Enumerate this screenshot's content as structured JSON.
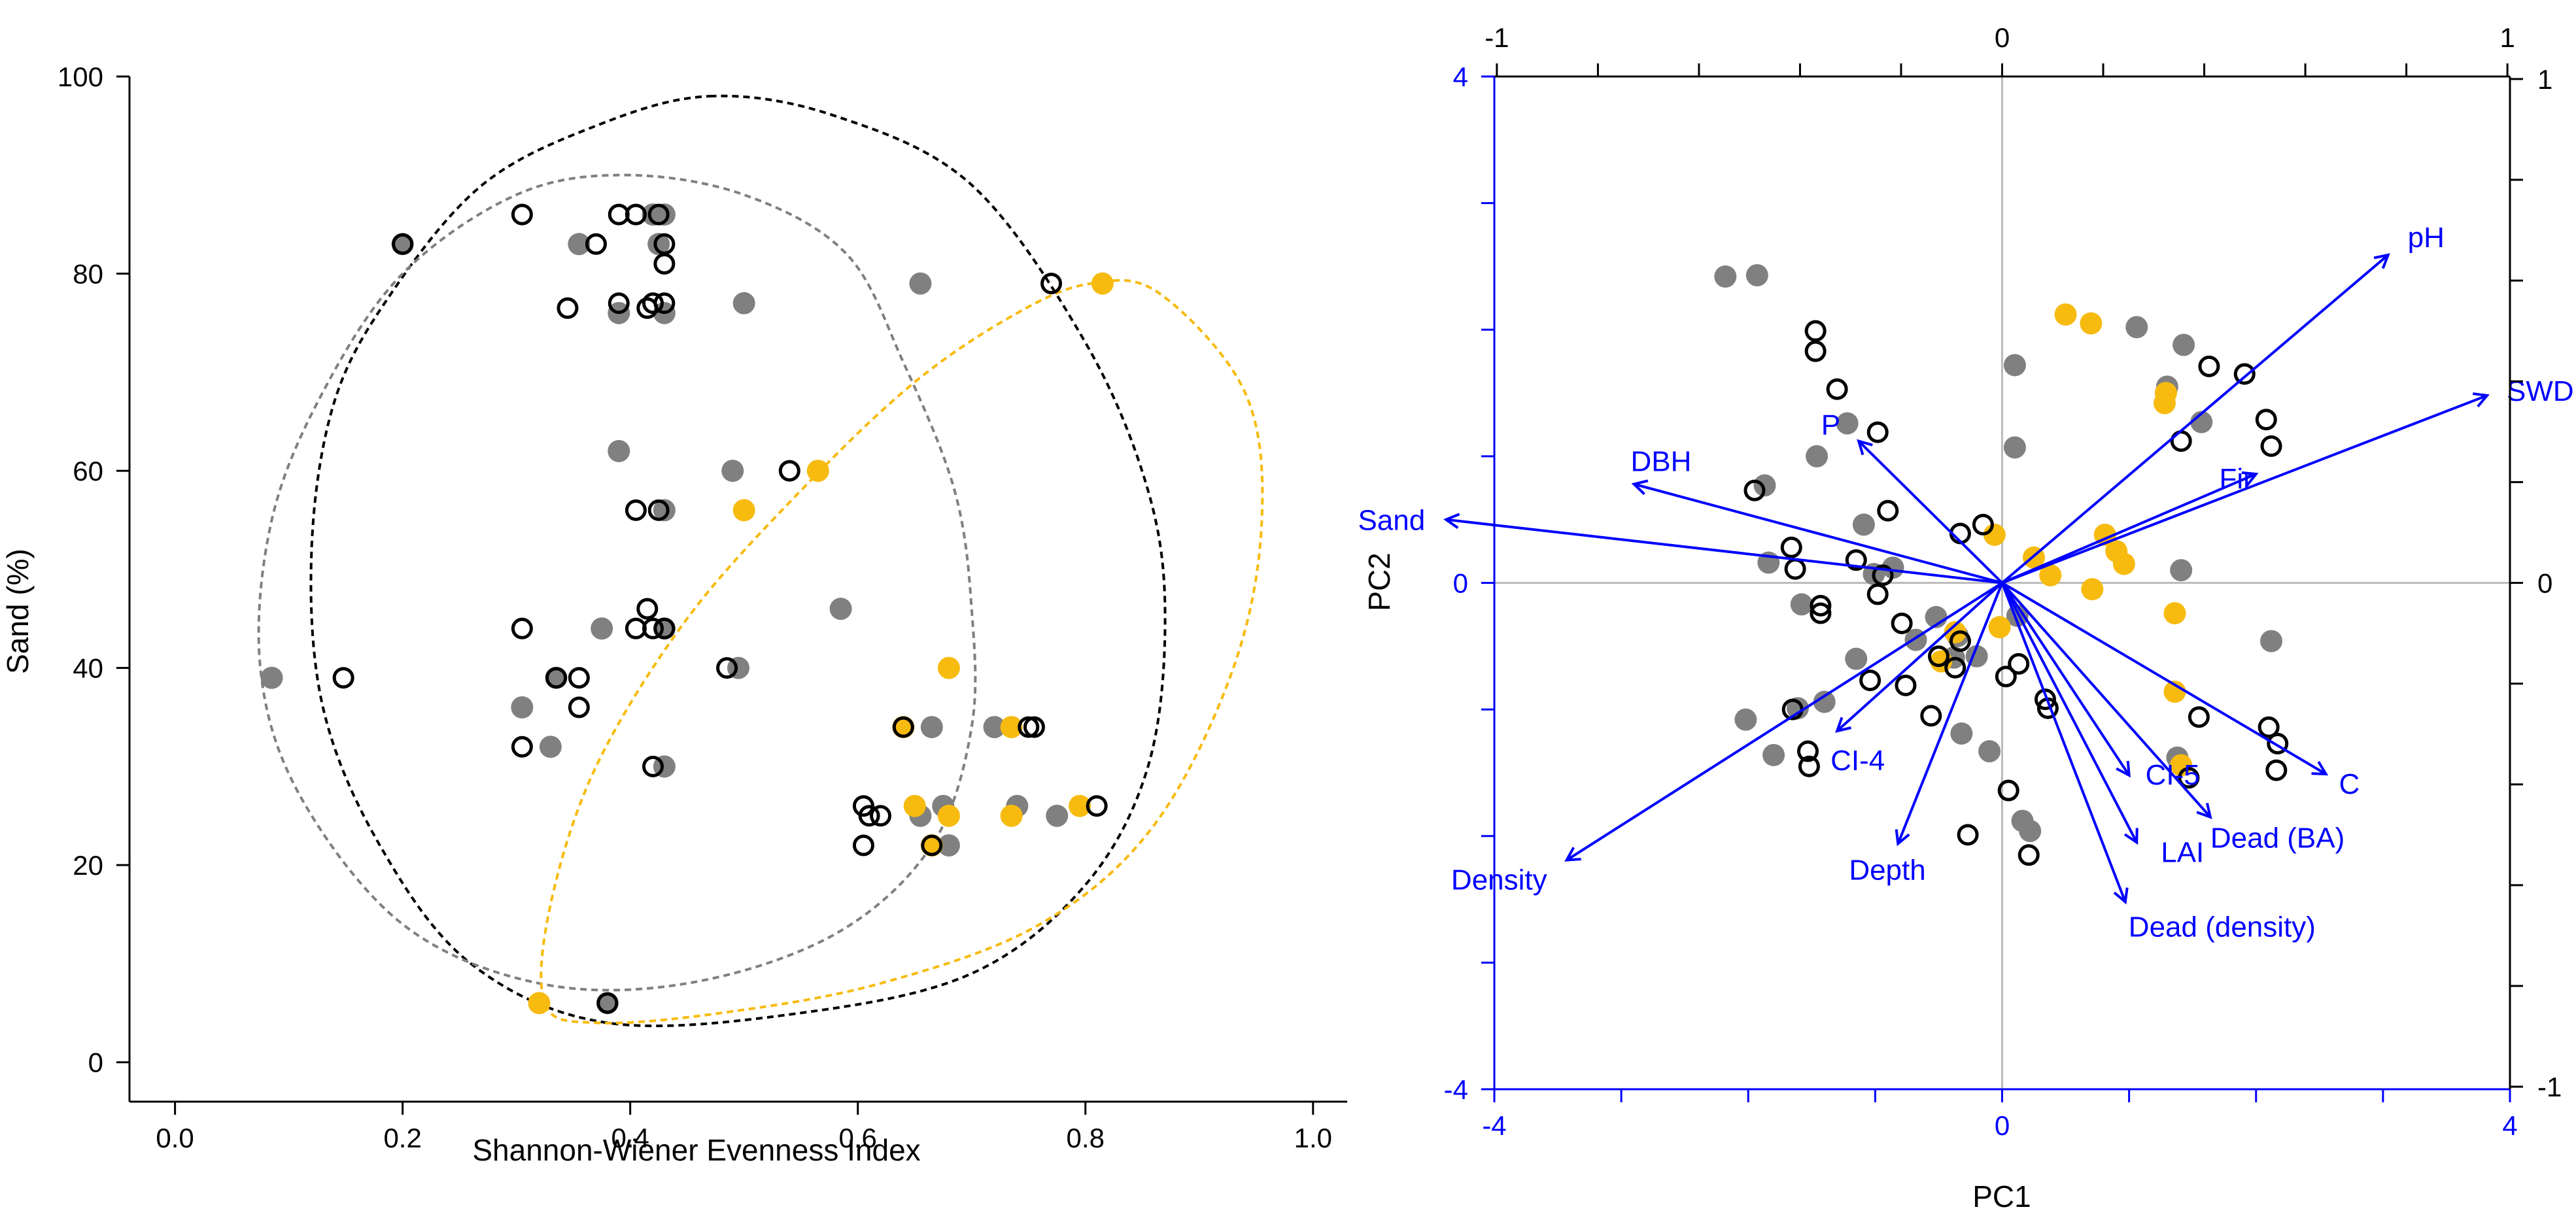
{
  "colors": {
    "black": "#000000",
    "grey": "#808080",
    "orange": "#F7BB10",
    "blue": "#0000FF",
    "zero_line": "#BBBBBB"
  },
  "chart_data": [
    {
      "type": "scatter",
      "title": "",
      "xlabel": "Shannon-Wiener Evenness Index",
      "ylabel": "Sand (%)",
      "xlim": [
        -0.04,
        1.03
      ],
      "ylim": [
        -4,
        100
      ],
      "xticks": [
        "0.0",
        "0.2",
        "0.4",
        "0.6",
        "0.8",
        "1.0"
      ],
      "yticks": [
        "0",
        "20",
        "40",
        "60",
        "80",
        "100"
      ],
      "legend": "none",
      "series": [
        {
          "marker": "open-black",
          "points": [
            [
              0.2,
              83
            ],
            [
              0.305,
              86
            ],
            [
              0.39,
              86
            ],
            [
              0.405,
              86
            ],
            [
              0.425,
              86
            ],
            [
              0.415,
              76.5
            ],
            [
              0.42,
              77
            ],
            [
              0.43,
              83
            ],
            [
              0.43,
              81
            ],
            [
              0.43,
              77
            ],
            [
              0.39,
              77
            ],
            [
              0.345,
              76.5
            ],
            [
              0.37,
              83
            ],
            [
              0.405,
              56
            ],
            [
              0.425,
              56
            ],
            [
              0.405,
              44
            ],
            [
              0.42,
              44
            ],
            [
              0.43,
              44
            ],
            [
              0.415,
              46
            ],
            [
              0.305,
              44
            ],
            [
              0.335,
              39
            ],
            [
              0.355,
              39
            ],
            [
              0.355,
              36
            ],
            [
              0.305,
              32
            ],
            [
              0.148,
              39
            ],
            [
              0.42,
              30
            ],
            [
              0.485,
              40
            ],
            [
              0.54,
              60
            ],
            [
              0.38,
              6
            ],
            [
              0.77,
              79
            ],
            [
              0.81,
              26
            ],
            [
              0.605,
              26
            ],
            [
              0.61,
              25
            ],
            [
              0.62,
              25
            ],
            [
              0.605,
              22
            ],
            [
              0.665,
              22
            ],
            [
              0.64,
              34
            ],
            [
              0.75,
              34
            ],
            [
              0.755,
              34
            ]
          ]
        },
        {
          "marker": "filled-grey",
          "points": [
            [
              0.2,
              83
            ],
            [
              0.085,
              39
            ],
            [
              0.305,
              36
            ],
            [
              0.33,
              32
            ],
            [
              0.335,
              39
            ],
            [
              0.355,
              83
            ],
            [
              0.375,
              44
            ],
            [
              0.39,
              62
            ],
            [
              0.39,
              76
            ],
            [
              0.42,
              86
            ],
            [
              0.425,
              83
            ],
            [
              0.43,
              86
            ],
            [
              0.43,
              76
            ],
            [
              0.43,
              56
            ],
            [
              0.43,
              44
            ],
            [
              0.43,
              30
            ],
            [
              0.5,
              77
            ],
            [
              0.49,
              60
            ],
            [
              0.495,
              40
            ],
            [
              0.585,
              46
            ],
            [
              0.655,
              79
            ],
            [
              0.655,
              25
            ],
            [
              0.665,
              34
            ],
            [
              0.675,
              26
            ],
            [
              0.68,
              22
            ],
            [
              0.72,
              34
            ],
            [
              0.74,
              26
            ],
            [
              0.775,
              25
            ],
            [
              0.38,
              6
            ]
          ]
        },
        {
          "marker": "filled-orange",
          "points": [
            [
              0.32,
              6
            ],
            [
              0.5,
              56
            ],
            [
              0.565,
              60
            ],
            [
              0.68,
              40
            ],
            [
              0.64,
              34
            ],
            [
              0.65,
              26
            ],
            [
              0.68,
              25
            ],
            [
              0.665,
              22
            ],
            [
              0.735,
              34
            ],
            [
              0.735,
              25
            ],
            [
              0.795,
              26
            ],
            [
              0.815,
              79
            ]
          ]
        }
      ],
      "ellipses": [
        {
          "color": "black",
          "path": [
            [
              0.47,
              98
            ],
            [
              0.58,
              96
            ],
            [
              0.7,
              89
            ],
            [
              0.8,
              73
            ],
            [
              0.855,
              58
            ],
            [
              0.87,
              45
            ],
            [
              0.855,
              30
            ],
            [
              0.8,
              18
            ],
            [
              0.7,
              9
            ],
            [
              0.55,
              5
            ],
            [
              0.38,
              4
            ],
            [
              0.26,
              10
            ],
            [
              0.18,
              22
            ],
            [
              0.13,
              36
            ],
            [
              0.12,
              52
            ],
            [
              0.14,
              67
            ],
            [
              0.19,
              78
            ],
            [
              0.27,
              89
            ],
            [
              0.37,
              95
            ]
          ]
        },
        {
          "color": "grey",
          "path": [
            [
              0.395,
              90
            ],
            [
              0.5,
              88
            ],
            [
              0.59,
              82
            ],
            [
              0.64,
              71
            ],
            [
              0.685,
              58
            ],
            [
              0.7,
              46
            ],
            [
              0.7,
              34
            ],
            [
              0.665,
              22
            ],
            [
              0.58,
              13
            ],
            [
              0.45,
              8
            ],
            [
              0.32,
              8
            ],
            [
              0.2,
              14
            ],
            [
              0.11,
              27
            ],
            [
              0.075,
              40
            ],
            [
              0.085,
              55
            ],
            [
              0.13,
              68
            ],
            [
              0.2,
              80
            ],
            [
              0.3,
              88
            ]
          ]
        },
        {
          "color": "orange",
          "path": [
            [
              0.805,
              79
            ],
            [
              0.865,
              78
            ],
            [
              0.94,
              68
            ],
            [
              0.955,
              55
            ],
            [
              0.93,
              40
            ],
            [
              0.86,
              24
            ],
            [
              0.76,
              14
            ],
            [
              0.62,
              8
            ],
            [
              0.48,
              5
            ],
            [
              0.37,
              4
            ],
            [
              0.325,
              6
            ],
            [
              0.33,
              16
            ],
            [
              0.37,
              30
            ],
            [
              0.45,
              45
            ],
            [
              0.55,
              58
            ],
            [
              0.65,
              69
            ],
            [
              0.74,
              76
            ]
          ]
        }
      ]
    },
    {
      "type": "scatter",
      "subtype": "biplot",
      "title": "",
      "xlabel": "PC1",
      "ylabel": "PC2",
      "xlim": [
        -4,
        4
      ],
      "ylim": [
        -4,
        4
      ],
      "bottom_ticks": [
        "-4",
        "0",
        "4"
      ],
      "left_ticks": [
        "4",
        "0",
        "-4"
      ],
      "top_ticks": [
        "-1",
        "0",
        "1"
      ],
      "right_ticks": [
        "1",
        "0",
        "-1"
      ],
      "legend": "none",
      "series": [
        {
          "marker": "filled-grey",
          "points": [
            [
              -2.18,
              2.42
            ],
            [
              -1.93,
              2.43
            ],
            [
              0.1,
              1.72
            ],
            [
              1.06,
              2.02
            ],
            [
              1.43,
              1.88
            ],
            [
              1.3,
              1.55
            ],
            [
              1.57,
              1.27
            ],
            [
              0.1,
              1.07
            ],
            [
              -1.22,
              1.26
            ],
            [
              -1.46,
              1.0
            ],
            [
              -1.87,
              0.77
            ],
            [
              -1.09,
              0.46
            ],
            [
              -1.84,
              0.16
            ],
            [
              -0.86,
              0.12
            ],
            [
              -1.01,
              0.07
            ],
            [
              -1.58,
              -0.17
            ],
            [
              -0.52,
              -0.27
            ],
            [
              -0.68,
              -0.45
            ],
            [
              -0.35,
              -0.42
            ],
            [
              -0.38,
              -0.59
            ],
            [
              0.12,
              -0.26
            ],
            [
              0.16,
              -1.88
            ],
            [
              -0.32,
              -1.19
            ],
            [
              -0.1,
              -1.33
            ],
            [
              0.22,
              -1.96
            ],
            [
              -1.4,
              -0.94
            ],
            [
              -1.61,
              -0.99
            ],
            [
              -2.02,
              -1.08
            ],
            [
              -1.8,
              -1.36
            ],
            [
              1.41,
              0.1
            ],
            [
              2.12,
              -0.46
            ],
            [
              1.38,
              -1.38
            ],
            [
              -1.15,
              -0.6
            ],
            [
              -0.2,
              -0.58
            ]
          ]
        },
        {
          "marker": "open-black",
          "points": [
            [
              -1.47,
              1.99
            ],
            [
              -1.47,
              1.83
            ],
            [
              -1.3,
              1.53
            ],
            [
              -0.98,
              1.19
            ],
            [
              1.41,
              1.12
            ],
            [
              1.63,
              1.71
            ],
            [
              1.91,
              1.65
            ],
            [
              2.08,
              1.29
            ],
            [
              2.12,
              1.08
            ],
            [
              -1.95,
              0.73
            ],
            [
              -0.9,
              0.57
            ],
            [
              -0.15,
              0.46
            ],
            [
              -0.33,
              0.39
            ],
            [
              -1.63,
              0.11
            ],
            [
              -1.66,
              0.28
            ],
            [
              -0.98,
              -0.09
            ],
            [
              -1.15,
              0.18
            ],
            [
              -0.94,
              0.06
            ],
            [
              -1.43,
              -0.18
            ],
            [
              -1.43,
              -0.24
            ],
            [
              -0.79,
              -0.32
            ],
            [
              -0.33,
              -0.46
            ],
            [
              -0.5,
              -0.58
            ],
            [
              -0.37,
              -0.67
            ],
            [
              -1.04,
              -0.77
            ],
            [
              -0.76,
              -0.81
            ],
            [
              -1.65,
              -1.0
            ],
            [
              -0.56,
              -1.05
            ],
            [
              1.55,
              -1.06
            ],
            [
              0.13,
              -0.64
            ],
            [
              0.03,
              -0.74
            ],
            [
              0.34,
              -0.92
            ],
            [
              2.1,
              -1.14
            ],
            [
              2.17,
              -1.27
            ],
            [
              2.16,
              -1.48
            ],
            [
              1.47,
              -1.54
            ],
            [
              -1.53,
              -1.33
            ],
            [
              -1.52,
              -1.45
            ],
            [
              0.05,
              -1.64
            ],
            [
              -0.27,
              -1.99
            ],
            [
              0.21,
              -2.15
            ],
            [
              0.36,
              -0.99
            ]
          ]
        },
        {
          "marker": "filled-orange",
          "points": [
            [
              0.5,
              2.12
            ],
            [
              0.7,
              2.05
            ],
            [
              1.29,
              1.5
            ],
            [
              1.28,
              1.42
            ],
            [
              0.81,
              0.38
            ],
            [
              0.9,
              0.25
            ],
            [
              0.96,
              0.15
            ],
            [
              -0.06,
              0.38
            ],
            [
              0.25,
              0.2
            ],
            [
              0.38,
              0.06
            ],
            [
              0.71,
              -0.05
            ],
            [
              1.36,
              -0.24
            ],
            [
              1.36,
              -0.86
            ],
            [
              1.41,
              -1.44
            ],
            [
              -0.02,
              -0.35
            ],
            [
              -0.37,
              -0.39
            ],
            [
              -0.48,
              -0.62
            ]
          ]
        }
      ],
      "vectors": [
        {
          "label": "pH",
          "x": 3.04,
          "y": 2.59
        },
        {
          "label": "SWDI",
          "x": 3.82,
          "y": 1.48
        },
        {
          "label": "Fir",
          "x": 2.0,
          "y": 0.86
        },
        {
          "label": "P",
          "x": -1.13,
          "y": 1.12
        },
        {
          "label": "DBH",
          "x": -2.9,
          "y": 0.78
        },
        {
          "label": "Sand",
          "x": -4.38,
          "y": 0.5
        },
        {
          "label": "CI-4",
          "x": -1.3,
          "y": -1.17
        },
        {
          "label": "Density",
          "x": -3.43,
          "y": -2.19
        },
        {
          "label": "Depth",
          "x": -0.82,
          "y": -2.06
        },
        {
          "label": "CI-5",
          "x": 1.0,
          "y": -1.52
        },
        {
          "label": "C",
          "x": 2.55,
          "y": -1.51
        },
        {
          "label": "Dead (BA)",
          "x": 1.64,
          "y": -1.85
        },
        {
          "label": "LAI",
          "x": 1.06,
          "y": -2.05
        },
        {
          "label": "Dead (density)",
          "x": 0.97,
          "y": -2.52
        }
      ]
    }
  ]
}
